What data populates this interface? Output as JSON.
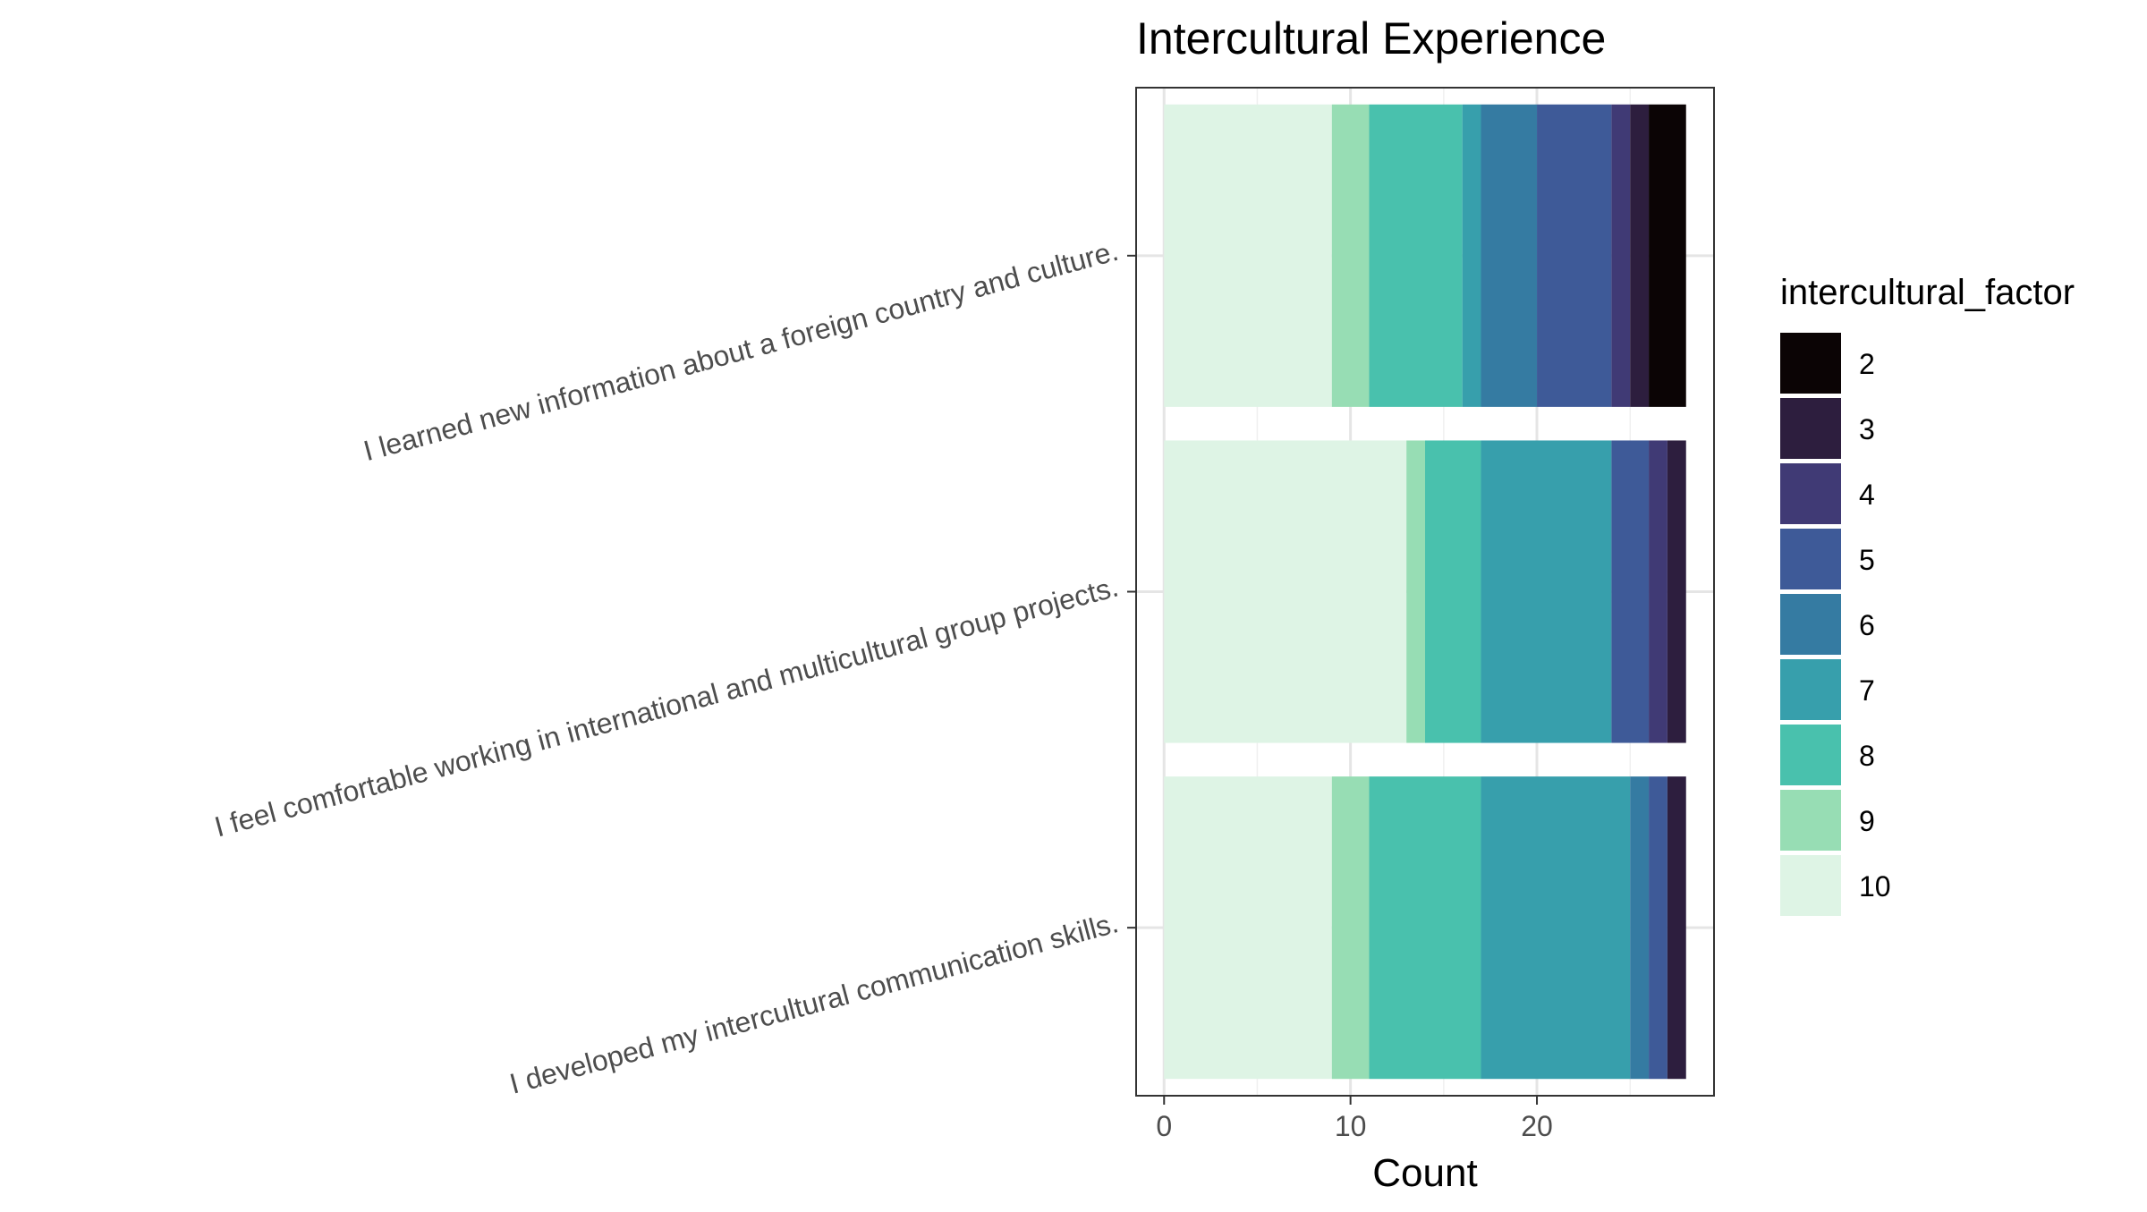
{
  "chart_data": {
    "type": "bar",
    "orientation": "horizontal",
    "stacked": true,
    "title": "Intercultural Experience",
    "xlabel": "Count",
    "ylabel": "",
    "xlim": [
      -1.5,
      29.5
    ],
    "xticks": [
      0,
      10,
      20
    ],
    "grid": true,
    "legend_position": "right",
    "legend_title": "intercultural_factor",
    "categories": [
      "I learned new information about a foreign country and culture.",
      "I feel comfortable working in international and multicultural group projects.",
      "I developed my intercultural communication skills."
    ],
    "series": [
      {
        "name": "10",
        "color": "#def4e5",
        "values": [
          9,
          13,
          9
        ]
      },
      {
        "name": "9",
        "color": "#97ddb4",
        "values": [
          2,
          1,
          2
        ]
      },
      {
        "name": "8",
        "color": "#49c1ad",
        "values": [
          5,
          3,
          6
        ]
      },
      {
        "name": "7",
        "color": "#379fac",
        "values": [
          1,
          7,
          8
        ]
      },
      {
        "name": "6",
        "color": "#357ba2",
        "values": [
          3,
          0,
          1
        ]
      },
      {
        "name": "5",
        "color": "#3e5a98",
        "values": [
          4,
          2,
          1
        ]
      },
      {
        "name": "4",
        "color": "#403a75",
        "values": [
          1,
          1,
          0
        ]
      },
      {
        "name": "3",
        "color": "#2d1e3e",
        "values": [
          1,
          1,
          1
        ]
      },
      {
        "name": "2",
        "color": "#0b0405",
        "values": [
          2,
          0,
          0
        ]
      }
    ]
  }
}
